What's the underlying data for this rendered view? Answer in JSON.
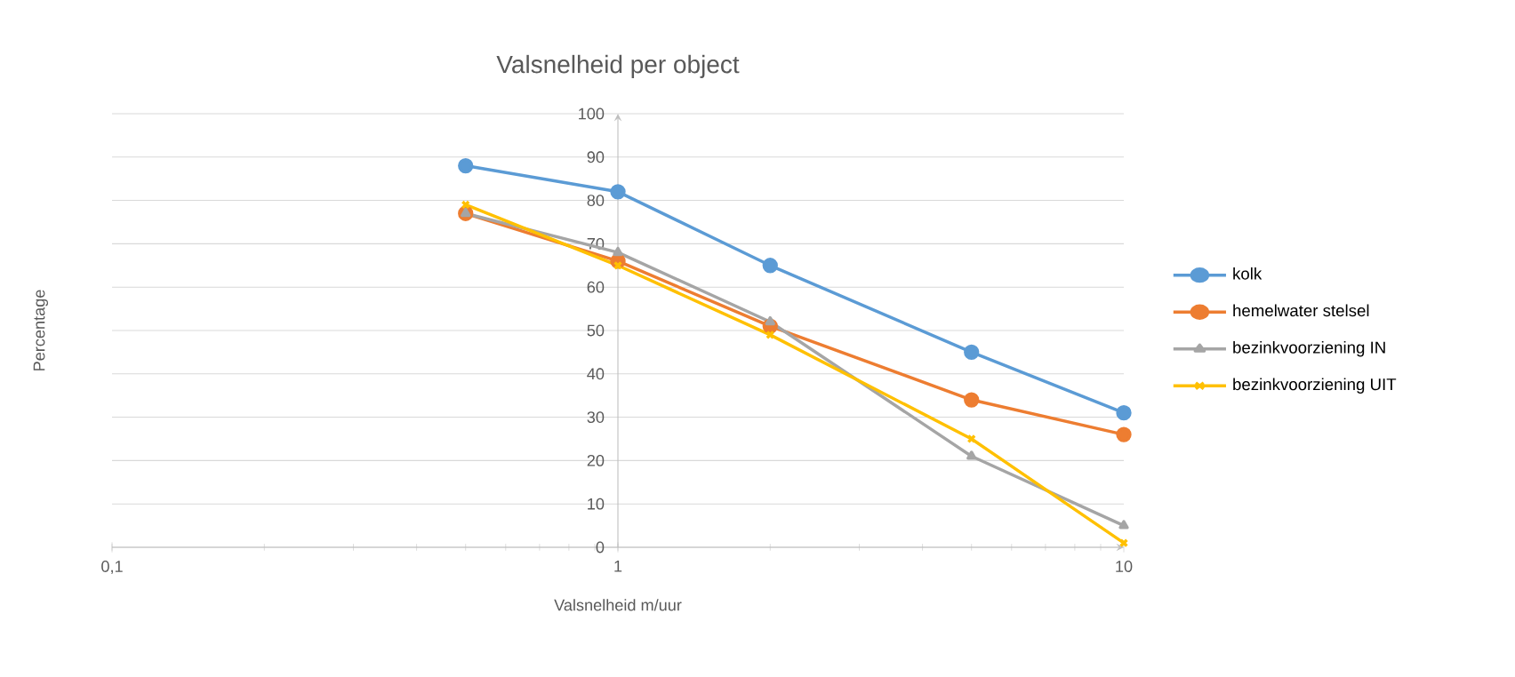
{
  "chart_data": {
    "type": "line",
    "title": "Valsnelheid per object",
    "xlabel": "Valsnelheid m/uur",
    "ylabel": "Percentage",
    "x": [
      0.5,
      1,
      2,
      5,
      10
    ],
    "series": [
      {
        "name": "kolk",
        "color": "#5b9bd5",
        "marker": "circle",
        "values": [
          88,
          82,
          65,
          45,
          31
        ]
      },
      {
        "name": "hemelwater stelsel",
        "color": "#ed7d31",
        "marker": "circle",
        "values": [
          77,
          66,
          51,
          34,
          26
        ]
      },
      {
        "name": "bezinkvoorziening IN",
        "color": "#a5a5a5",
        "marker": "triangle",
        "values": [
          77,
          68,
          52,
          21,
          5
        ]
      },
      {
        "name": "bezinkvoorziening UIT",
        "color": "#ffc000",
        "marker": "cross",
        "values": [
          79,
          65,
          49,
          25,
          1
        ]
      }
    ],
    "log": "x",
    "xlim": [
      0.1,
      10
    ],
    "xticks": [
      {
        "value": 0.1,
        "label": "0,1"
      },
      1,
      10
    ],
    "ylim": [
      0,
      100
    ],
    "yticks": [
      0,
      10,
      20,
      30,
      40,
      50,
      60,
      70,
      80,
      90,
      100
    ],
    "grid": "y",
    "legend": "right",
    "line_style": "solid"
  }
}
